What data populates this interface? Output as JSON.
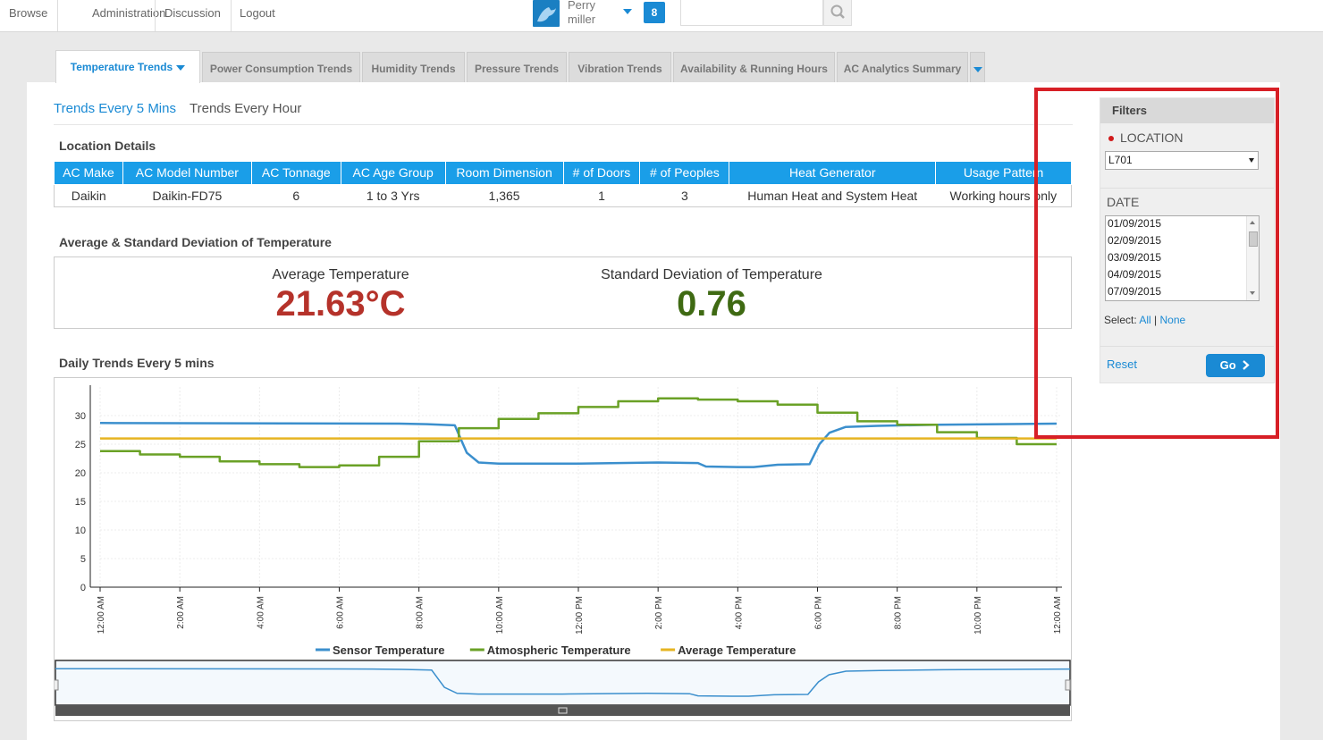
{
  "topnav": {
    "links": [
      "Browse",
      "Administration",
      "Discussion",
      "Logout"
    ],
    "user_first": "Perry",
    "user_last": "miller",
    "notification_count": "8",
    "search_value": ""
  },
  "tabs": [
    {
      "label": "Temperature Trends",
      "active": true
    },
    {
      "label": "Power Consumption Trends",
      "active": false
    },
    {
      "label": "Humidity Trends",
      "active": false
    },
    {
      "label": "Pressure Trends",
      "active": false
    },
    {
      "label": "Vibration Trends",
      "active": false
    },
    {
      "label": "Availability & Running Hours",
      "active": false
    },
    {
      "label": "AC Analytics Summary",
      "active": false
    }
  ],
  "subtabs": [
    "Trends Every 5 Mins",
    "Trends Every Hour"
  ],
  "location_details": {
    "title": "Location Details",
    "headers": [
      "AC Make",
      "AC Model Number",
      "AC Tonnage",
      "AC Age Group",
      "Room Dimension",
      "# of Doors",
      "# of Peoples",
      "Heat Generator",
      "Usage Pattern"
    ],
    "row": [
      "Daikin",
      "Daikin-FD75",
      "6",
      "1 to 3 Yrs",
      "1,365",
      "1",
      "3",
      "Human Heat and System Heat",
      "Working hours only"
    ]
  },
  "stats": {
    "title": "Average & Standard Deviation of Temperature",
    "avg_label": "Average Temperature",
    "avg_value": "21.63°C",
    "std_label": "Standard Deviation of Temperature",
    "std_value": "0.76",
    "avg_color": "#b5322a",
    "std_color": "#3f6a13"
  },
  "chart_title": "Daily Trends Every 5 mins",
  "chart_data": {
    "type": "line",
    "title": "",
    "xlabel": "",
    "ylabel": "",
    "ylim": [
      0,
      35
    ],
    "yticks": [
      0,
      5,
      10,
      15,
      20,
      25,
      30
    ],
    "xticks": [
      "12:00 AM",
      "2:00 AM",
      "4:00 AM",
      "6:00 AM",
      "8:00 AM",
      "10:00 AM",
      "12:00 PM",
      "2:00 PM",
      "4:00 PM",
      "6:00 PM",
      "8:00 PM",
      "10:00 PM",
      "12:00 AM"
    ],
    "xlim": [
      0,
      24
    ],
    "grid": true,
    "legend": "bottom",
    "series": [
      {
        "name": "Sensor Temperature",
        "color": "#3b8fcd",
        "points": [
          [
            0,
            28.7
          ],
          [
            7.5,
            28.6
          ],
          [
            8.2,
            28.5
          ],
          [
            8.9,
            28.3
          ],
          [
            9.2,
            23.5
          ],
          [
            9.5,
            21.8
          ],
          [
            10,
            21.6
          ],
          [
            12,
            21.6
          ],
          [
            14,
            21.8
          ],
          [
            15.0,
            21.7
          ],
          [
            15.2,
            21.1
          ],
          [
            16,
            21.0
          ],
          [
            16.4,
            21.0
          ],
          [
            17,
            21.4
          ],
          [
            17.8,
            21.5
          ],
          [
            18.05,
            25
          ],
          [
            18.3,
            27
          ],
          [
            18.7,
            28
          ],
          [
            19.5,
            28.2
          ],
          [
            21,
            28.4
          ],
          [
            24,
            28.6
          ]
        ]
      },
      {
        "name": "Atmospheric Temperature",
        "color": "#6aa126",
        "points": [
          [
            0,
            23.8
          ],
          [
            1,
            23.8
          ],
          [
            1,
            23.2
          ],
          [
            2,
            23.2
          ],
          [
            2,
            22.8
          ],
          [
            3,
            22.8
          ],
          [
            3,
            22.0
          ],
          [
            4,
            22.0
          ],
          [
            4,
            21.5
          ],
          [
            5,
            21.5
          ],
          [
            5,
            21.0
          ],
          [
            6,
            21.0
          ],
          [
            6,
            21.3
          ],
          [
            7,
            21.3
          ],
          [
            7,
            22.8
          ],
          [
            8,
            22.8
          ],
          [
            8,
            25.5
          ],
          [
            9,
            25.5
          ],
          [
            9,
            27.8
          ],
          [
            10,
            27.8
          ],
          [
            10,
            29.4
          ],
          [
            11,
            29.4
          ],
          [
            11,
            30.4
          ],
          [
            12,
            30.4
          ],
          [
            12,
            31.5
          ],
          [
            13,
            31.5
          ],
          [
            13,
            32.5
          ],
          [
            14,
            32.5
          ],
          [
            14,
            33.0
          ],
          [
            15,
            33.0
          ],
          [
            15,
            32.8
          ],
          [
            16,
            32.8
          ],
          [
            16,
            32.5
          ],
          [
            17,
            32.5
          ],
          [
            17,
            31.9
          ],
          [
            18,
            31.9
          ],
          [
            18,
            30.5
          ],
          [
            19,
            30.5
          ],
          [
            19,
            29.0
          ],
          [
            20,
            29.0
          ],
          [
            20,
            28.4
          ],
          [
            21,
            28.4
          ],
          [
            21,
            27.1
          ],
          [
            22,
            27.1
          ],
          [
            22,
            26.1
          ],
          [
            23,
            26.1
          ],
          [
            23,
            25.0
          ],
          [
            24,
            25.0
          ]
        ]
      },
      {
        "name": "Average Temperature",
        "color": "#e6b422",
        "points": [
          [
            0,
            26.0
          ],
          [
            24,
            26.0
          ]
        ]
      }
    ]
  },
  "filters": {
    "title": "Filters",
    "location_label": "LOCATION",
    "location_value": "L701",
    "date_label": "DATE",
    "dates": [
      "01/09/2015",
      "02/09/2015",
      "03/09/2015",
      "04/09/2015",
      "07/09/2015"
    ],
    "select_label": "Select:",
    "select_all": "All",
    "select_sep": "|",
    "select_none": "None",
    "reset_label": "Reset",
    "go_label": "Go"
  },
  "highlight_color": "#d71f26"
}
